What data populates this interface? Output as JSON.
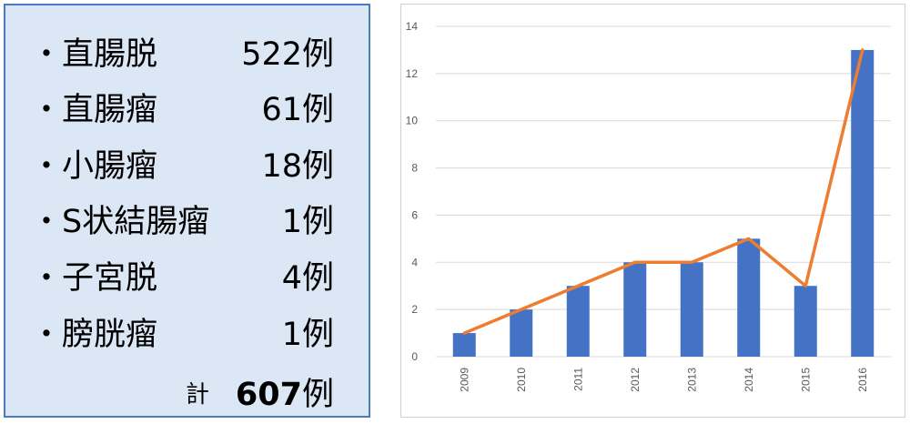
{
  "list": {
    "bullet": "・",
    "items": [
      {
        "name": "直腸脱",
        "count": "522例"
      },
      {
        "name": "直腸瘤",
        "count": "61例"
      },
      {
        "name": "小腸瘤",
        "count": "18例"
      },
      {
        "name": "S状結腸瘤",
        "count": "1例"
      },
      {
        "name": "子宮脱",
        "count": "4例"
      },
      {
        "name": "膀胱瘤",
        "count": "1例"
      }
    ],
    "total_label": "計",
    "total_number": "607",
    "total_unit": "例"
  },
  "colors": {
    "panel_background": "#dbe7f5",
    "panel_border": "#4a7cc0",
    "bar": "#4472c4",
    "line": "#ed7d31",
    "grid": "#d9d9d9"
  },
  "chart_data": {
    "type": "bar",
    "categories": [
      "2009",
      "2010",
      "2011",
      "2012",
      "2013",
      "2014",
      "2015",
      "2016"
    ],
    "series": [
      {
        "type": "bar",
        "values": [
          1,
          2,
          3,
          4,
          4,
          5,
          3,
          13
        ]
      },
      {
        "type": "line",
        "values": [
          1,
          2,
          3,
          4,
          4,
          5,
          3,
          13
        ]
      }
    ],
    "yticks": [
      "0",
      "2",
      "4",
      "6",
      "8",
      "10",
      "12",
      "14"
    ],
    "ylim": [
      0,
      14
    ],
    "grid": true,
    "x_label_rotation": "vertical"
  }
}
